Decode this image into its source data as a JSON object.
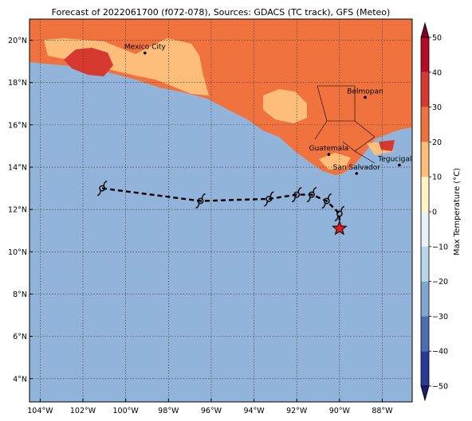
{
  "title": "Forecast of 2022061700 (f072-078), Sources: GDACS (TC track), GFS (Meteo)",
  "colors": {
    "ocean": "#92b4da",
    "land_low": "#fdbe7c",
    "land_mid": "#f0733f",
    "land_hot": "#d6392f",
    "track": "#000000",
    "marker": "#e31a1c"
  },
  "lon_ticks": [
    "104°W",
    "102°W",
    "100°W",
    "98°W",
    "96°W",
    "94°W",
    "92°W",
    "90°W",
    "88°W"
  ],
  "lat_ticks": [
    "20°N",
    "18°N",
    "16°N",
    "14°N",
    "12°N",
    "10°N",
    "8°N",
    "6°N",
    "4°N"
  ],
  "cities": [
    {
      "name": "Mexico City",
      "lon": -99.1,
      "lat": 19.4
    },
    {
      "name": "Belmopan",
      "lon": -88.8,
      "lat": 17.3
    },
    {
      "name": "Guatemala",
      "lon": -90.5,
      "lat": 14.6
    },
    {
      "name": "San Salvador",
      "lon": -89.2,
      "lat": 13.7
    },
    {
      "name": "Tegucigalpa",
      "lon": -87.2,
      "lat": 14.1
    }
  ],
  "track": [
    {
      "lon": -90.0,
      "lat": 11.1
    },
    {
      "lon": -90.0,
      "lat": 11.8
    },
    {
      "lon": -90.6,
      "lat": 12.4
    },
    {
      "lon": -91.3,
      "lat": 12.7
    },
    {
      "lon": -92.0,
      "lat": 12.7
    },
    {
      "lon": -93.3,
      "lat": 12.5
    },
    {
      "lon": -96.5,
      "lat": 12.4
    },
    {
      "lon": -101.1,
      "lat": 13.0
    }
  ],
  "colorbar": {
    "label": "Max Temperature (°C)",
    "ticks": [
      "50",
      "40",
      "30",
      "20",
      "10",
      "0",
      "−10",
      "−20",
      "−30",
      "−40",
      "−50"
    ],
    "colors": [
      "#7f0026",
      "#b30d26",
      "#d6392f",
      "#f0733f",
      "#fdbe7c",
      "#fff3c6",
      "#e6f2f7",
      "#b7d7e8",
      "#7fa8cf",
      "#4a6fb0",
      "#2c3a95",
      "#1b1a6e"
    ]
  }
}
